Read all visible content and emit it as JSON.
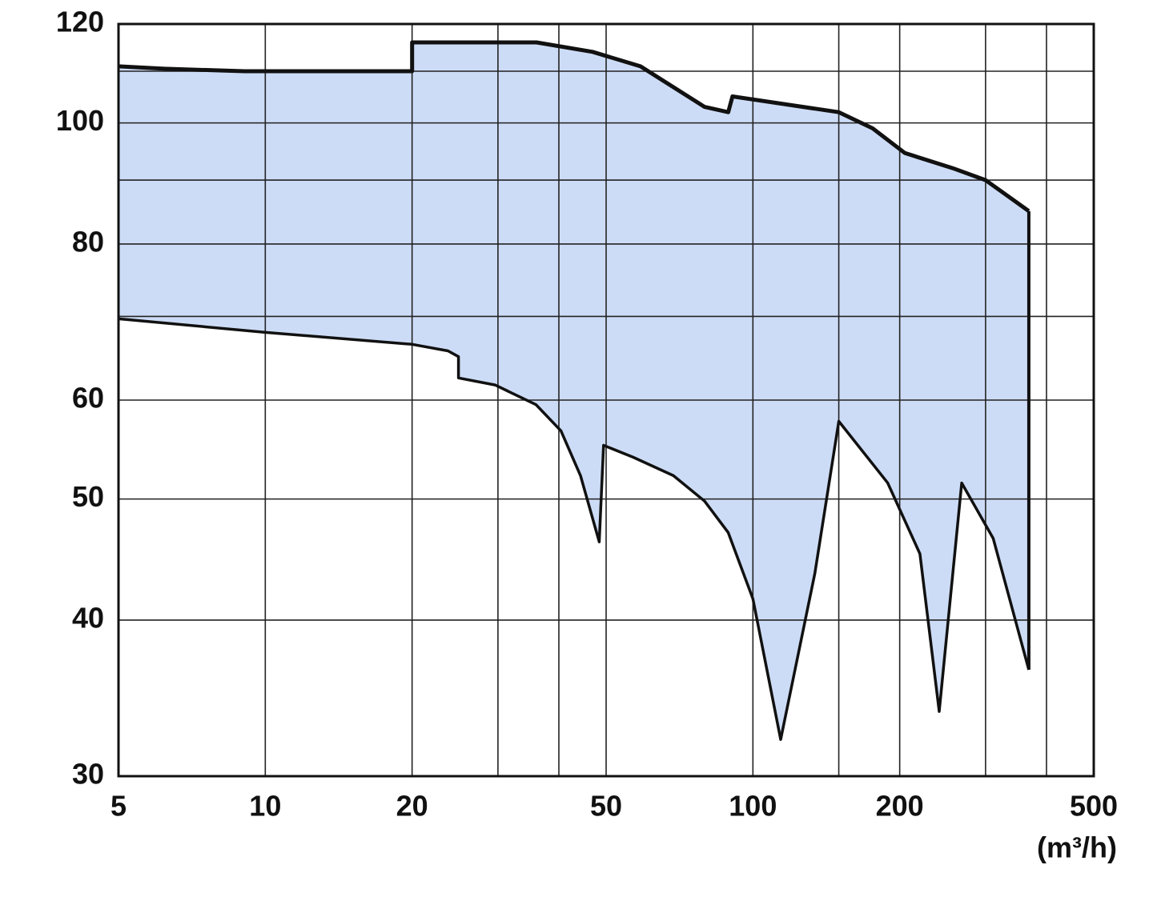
{
  "chart_data": {
    "type": "area",
    "x_label": "(m³/h)",
    "xscale": "log",
    "yscale": "log",
    "xlim": [
      5,
      500
    ],
    "ylim": [
      30,
      120
    ],
    "xticks": [
      5,
      10,
      20,
      50,
      100,
      200,
      500
    ],
    "yticks": [
      30,
      40,
      50,
      60,
      80,
      100,
      120
    ],
    "x_minor_grid": [
      30,
      40,
      150,
      300,
      400
    ],
    "y_minor_grid": [
      70,
      90,
      110
    ],
    "grid": true,
    "fill_color": "#cddcf6",
    "line_color": "#111111",
    "series": [
      {
        "x": [
          5,
          6.2,
          9.06,
          20,
          20,
          36,
          46.9,
          58.8,
          79.6,
          89,
          90.8,
          150,
          176,
          205,
          257,
          300,
          368
        ],
        "values": [
          111,
          110.5,
          110,
          110,
          116,
          116,
          114,
          111,
          103,
          102,
          105,
          102,
          99,
          94.6,
          92,
          90,
          85
        ]
      },
      {
        "x": [
          5,
          9.9,
          20,
          23.7,
          24.9,
          24.9,
          29.6,
          35.9,
          40.4,
          44.3,
          48.4,
          49.4,
          56.8,
          68.7,
          79.6,
          89,
          100,
          114,
          134,
          150,
          189,
          220,
          241,
          268,
          311,
          368
        ],
        "values": [
          69.7,
          68,
          66.5,
          65.7,
          65,
          62.5,
          61.7,
          59.5,
          56.7,
          52.2,
          46.2,
          55.2,
          54,
          52.2,
          49.8,
          47,
          41.6,
          32.1,
          43.6,
          57.7,
          51.5,
          45.2,
          33.8,
          51.5,
          46.5,
          36.5
        ]
      }
    ]
  }
}
